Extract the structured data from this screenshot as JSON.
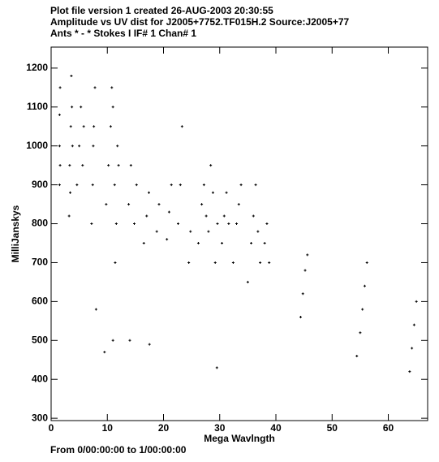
{
  "chart_data": {
    "type": "scatter",
    "title_lines": [
      "Plot file version 1  created 26-AUG-2003 20:30:55",
      "Amplitude vs UV dist for J2005+7752.TF015H.2   Source:J2005+77",
      "Ants * - *     Stokes I  IF# 1  Chan# 1"
    ],
    "x_label": "Mega Wavlngth",
    "y_label": "MilliJanskys",
    "footer": "From  0/00:00:00  to  1/00:00:00",
    "color": "#000000",
    "xlim": [
      0,
      67
    ],
    "ylim": [
      294,
      1254
    ],
    "xticks": [
      0,
      10,
      20,
      30,
      40,
      50,
      60
    ],
    "yticks": [
      300,
      400,
      500,
      600,
      700,
      800,
      900,
      1000,
      1100,
      1200
    ],
    "x": [
      1.5,
      1.5,
      1.5,
      1.6,
      1.6,
      3.2,
      3.3,
      3.5,
      3.6,
      3.8,
      3.4,
      3.7,
      4.6,
      5.0,
      5.3,
      5.6,
      5.8,
      7.2,
      7.4,
      7.6,
      7.8,
      7.5,
      9.8,
      10.2,
      10.6,
      11.0,
      11.3,
      11.6,
      11.8,
      12.0,
      11.4,
      10.8,
      13.8,
      14.2,
      14.8,
      15.2,
      16.5,
      17.0,
      17.4,
      18.8,
      19.2,
      20.6,
      21.0,
      21.4,
      22.6,
      23.0,
      23.3,
      24.5,
      24.8,
      26.2,
      26.8,
      27.2,
      27.6,
      28.0,
      28.4,
      28.8,
      29.2,
      29.6,
      30.4,
      30.8,
      31.2,
      31.6,
      32.4,
      33.0,
      33.4,
      33.8,
      35.0,
      35.6,
      36.0,
      36.4,
      36.8,
      37.2,
      38.0,
      38.4,
      38.8,
      44.4,
      44.8,
      45.2,
      45.6,
      54.4,
      55.0,
      55.4,
      55.8,
      56.2,
      63.8,
      64.2,
      64.6,
      65.0,
      8.0,
      11.0,
      14.0,
      17.5,
      29.5,
      9.5
    ],
    "y": [
      900,
      1000,
      1080,
      950,
      1150,
      820,
      950,
      1050,
      1180,
      1000,
      880,
      1100,
      900,
      1000,
      1100,
      950,
      1050,
      800,
      900,
      1050,
      1150,
      1000,
      850,
      950,
      1050,
      1100,
      900,
      800,
      1000,
      950,
      700,
      1150,
      850,
      950,
      800,
      900,
      750,
      820,
      880,
      780,
      850,
      760,
      830,
      900,
      800,
      900,
      1050,
      700,
      780,
      750,
      850,
      900,
      820,
      780,
      950,
      880,
      700,
      800,
      750,
      820,
      880,
      800,
      700,
      800,
      850,
      900,
      650,
      750,
      820,
      900,
      780,
      700,
      750,
      800,
      700,
      560,
      620,
      680,
      720,
      460,
      520,
      580,
      640,
      700,
      420,
      480,
      540,
      600,
      580,
      500,
      500,
      490,
      430,
      470
    ]
  }
}
